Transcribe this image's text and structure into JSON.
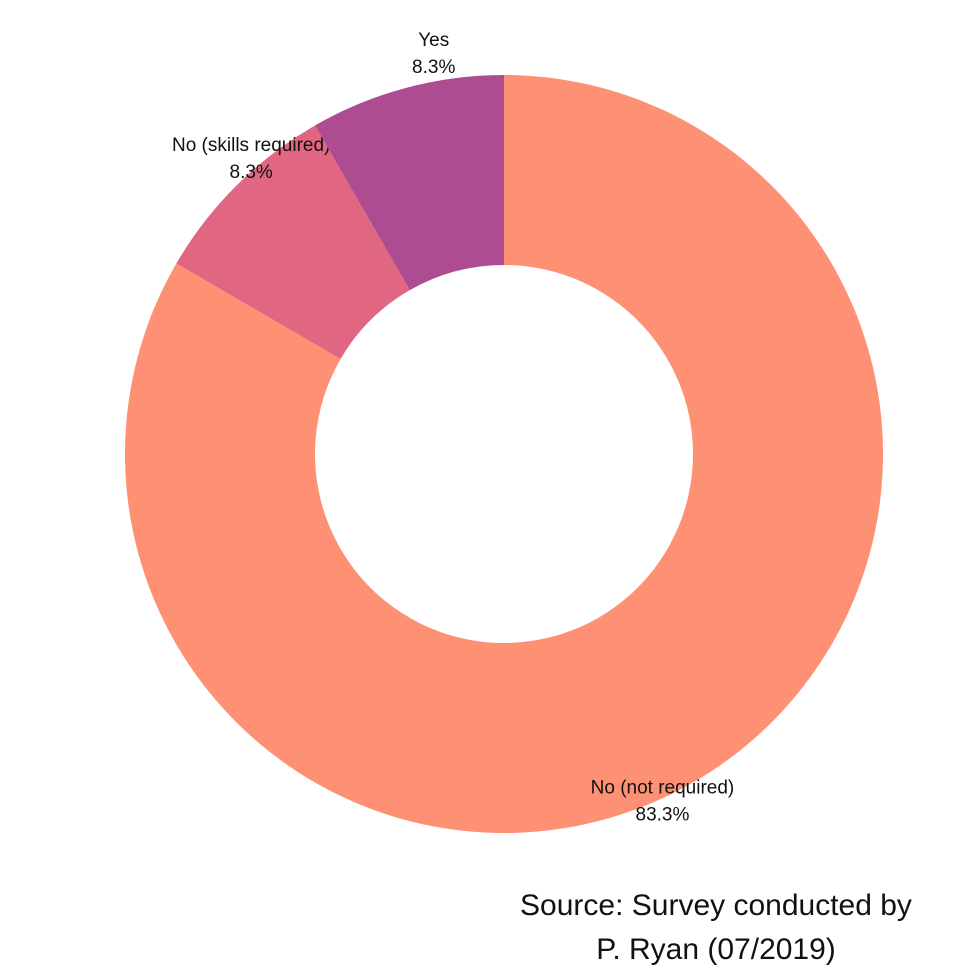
{
  "chart_data": {
    "type": "pie",
    "style": "donut",
    "start": "12 o'clock",
    "direction": "clockwise",
    "slices": [
      {
        "label": "No (not required)",
        "value": 83.3,
        "value_label": "83.3%",
        "color": "#fe9174"
      },
      {
        "label": "No (skills required)",
        "value": 8.3,
        "value_label": "8.3%",
        "color": "#e16682"
      },
      {
        "label": "Yes",
        "value": 8.3,
        "value_label": "8.3%",
        "color": "#ad4c91"
      }
    ],
    "title": "",
    "legend": "none"
  },
  "source": {
    "line1": "Source: Survey conducted by",
    "line2": "P. Ryan (07/2019)"
  }
}
